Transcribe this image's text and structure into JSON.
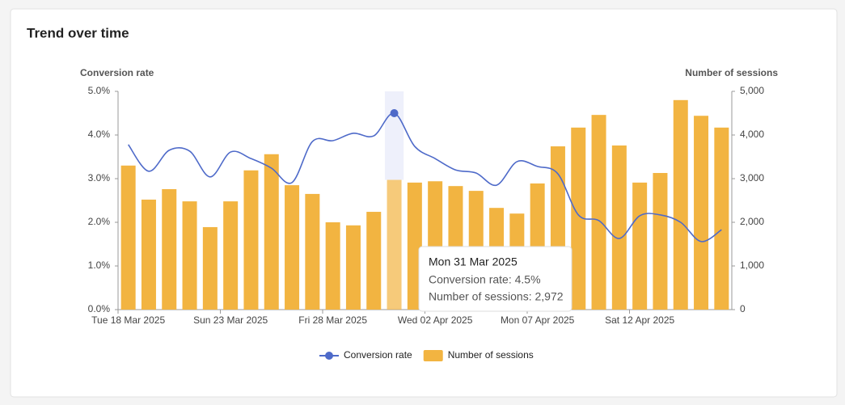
{
  "chart_data": {
    "type": "combo",
    "title": "Trend over time",
    "y_label": "Conversion rate",
    "y2_label": "Number of sessions",
    "categories": [
      "Tue 18 Mar 2025",
      null,
      null,
      null,
      null,
      "Sun 23 Mar 2025",
      null,
      null,
      null,
      null,
      "Fri 28 Mar 2025",
      null,
      null,
      null,
      null,
      "Wed 02 Apr 2025",
      null,
      null,
      null,
      null,
      "Mon 07 Apr 2025",
      null,
      null,
      null,
      null,
      "Sat 12 Apr 2025",
      null,
      null,
      null,
      null
    ],
    "series": [
      {
        "name": "Conversion rate",
        "type": "line",
        "axis": "y",
        "color": "#4e6ac9",
        "values": [
          3.78,
          3.17,
          3.65,
          3.63,
          3.04,
          3.61,
          3.46,
          3.24,
          2.91,
          3.85,
          3.87,
          4.04,
          3.98,
          4.5,
          3.74,
          3.46,
          3.2,
          3.13,
          2.85,
          3.39,
          3.28,
          3.11,
          2.17,
          2.04,
          1.63,
          2.15,
          2.17,
          2.0,
          1.56,
          1.83
        ]
      },
      {
        "name": "Number of sessions",
        "type": "bar",
        "axis": "y2",
        "color": "#f2b441",
        "values": [
          3300,
          2520,
          2760,
          2480,
          1890,
          2480,
          3190,
          3560,
          2850,
          2650,
          2000,
          1930,
          2240,
          2972,
          2910,
          2940,
          2830,
          2720,
          2330,
          2200,
          2890,
          3740,
          4170,
          4460,
          3760,
          2910,
          3130,
          4800,
          4440,
          4170
        ]
      }
    ],
    "ylim": [
      0,
      5
    ],
    "yticks": [
      {
        "value": 0,
        "label": "0.0%"
      },
      {
        "value": 1,
        "label": "1.0%"
      },
      {
        "value": 2,
        "label": "2.0%"
      },
      {
        "value": 3,
        "label": "3.0%"
      },
      {
        "value": 4,
        "label": "4.0%"
      },
      {
        "value": 5,
        "label": "5.0%"
      }
    ],
    "y2lim": [
      0,
      5000
    ],
    "y2ticks": [
      0,
      {
        "value": 1000,
        "label": "1,000"
      },
      {
        "value": 2000,
        "label": "2,000"
      },
      {
        "value": 3000,
        "label": "3,000"
      },
      {
        "value": 4000,
        "label": "4,000"
      },
      {
        "value": 5000,
        "label": "5,000"
      }
    ],
    "active_index": 13,
    "tooltip": {
      "title": "Mon 31 Mar 2025",
      "lines": [
        "Conversion rate: 4.5%",
        "Number of sessions: 2,972"
      ]
    },
    "legend": "bottom"
  }
}
